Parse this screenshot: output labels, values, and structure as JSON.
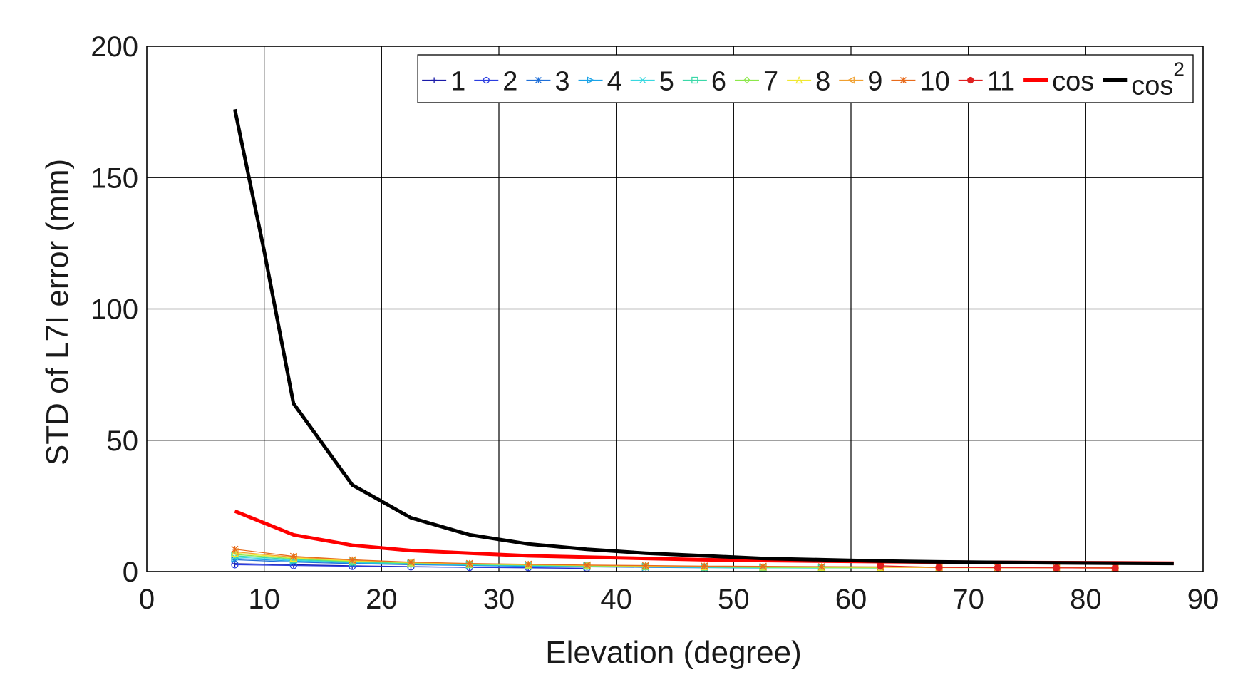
{
  "chart_data": {
    "type": "line",
    "xlabel": "Elevation (degree)",
    "ylabel": "STD of L7I error (mm)",
    "xlim": [
      0,
      90
    ],
    "ylim": [
      0,
      200
    ],
    "xticks": [
      0,
      10,
      20,
      30,
      40,
      50,
      60,
      70,
      80,
      90
    ],
    "yticks": [
      0,
      50,
      100,
      150,
      200
    ],
    "grid": true,
    "legend_position": "top-right",
    "legend_orientation": "horizontal",
    "series": [
      {
        "name": "1",
        "color": "#1a1aa8",
        "marker": "plus",
        "width": 1.2,
        "x": [
          7.5,
          12.5,
          17.5,
          22.5,
          27.5,
          32.5,
          37.5
        ],
        "y": [
          3.0,
          2.6,
          2.2,
          1.9,
          1.6,
          1.4,
          1.2
        ]
      },
      {
        "name": "2",
        "color": "#2a3de0",
        "marker": "circle",
        "width": 1.2,
        "x": [
          7.5,
          12.5,
          17.5,
          22.5,
          27.5,
          32.5,
          37.5
        ],
        "y": [
          2.6,
          2.3,
          2.0,
          1.8,
          1.6,
          1.5,
          1.3
        ]
      },
      {
        "name": "3",
        "color": "#1f6fd8",
        "marker": "star",
        "width": 1.2,
        "x": [
          7.5,
          12.5,
          17.5,
          22.5,
          27.5,
          32.5,
          37.5,
          42.5,
          47.5
        ],
        "y": [
          4.5,
          3.6,
          3.0,
          2.6,
          2.3,
          2.0,
          1.8,
          1.6,
          1.4
        ]
      },
      {
        "name": "4",
        "color": "#1aa3e8",
        "marker": "triangle-right",
        "width": 1.2,
        "x": [
          7.5,
          12.5,
          17.5,
          22.5,
          27.5,
          32.5,
          37.5,
          42.5,
          47.5,
          52.5
        ],
        "y": [
          5.0,
          4.0,
          3.3,
          2.8,
          2.4,
          2.1,
          1.9,
          1.7,
          1.5,
          1.3
        ]
      },
      {
        "name": "5",
        "color": "#38d8e0",
        "marker": "x",
        "width": 1.2,
        "x": [
          7.5,
          12.5,
          17.5,
          22.5,
          27.5,
          32.5,
          37.5,
          42.5,
          47.5,
          52.5,
          57.5
        ],
        "y": [
          5.5,
          4.3,
          3.5,
          3.0,
          2.6,
          2.3,
          2.0,
          1.8,
          1.6,
          1.4,
          1.3
        ]
      },
      {
        "name": "6",
        "color": "#3ad8a8",
        "marker": "square",
        "width": 1.2,
        "x": [
          7.5,
          12.5,
          17.5,
          22.5,
          27.5,
          32.5,
          37.5,
          42.5,
          47.5,
          52.5,
          57.5,
          62.5
        ],
        "y": [
          6.0,
          4.6,
          3.7,
          3.1,
          2.7,
          2.4,
          2.1,
          1.9,
          1.7,
          1.5,
          1.4,
          1.3
        ]
      },
      {
        "name": "7",
        "color": "#8ce84a",
        "marker": "diamond",
        "width": 1.2,
        "x": [
          7.5,
          12.5,
          17.5,
          22.5,
          27.5,
          32.5,
          37.5,
          42.5,
          47.5,
          52.5,
          57.5,
          62.5
        ],
        "y": [
          6.5,
          4.9,
          3.9,
          3.3,
          2.8,
          2.5,
          2.2,
          2.0,
          1.8,
          1.6,
          1.5,
          1.4
        ]
      },
      {
        "name": "8",
        "color": "#f0e830",
        "marker": "triangle-up",
        "width": 1.2,
        "x": [
          7.5,
          12.5,
          17.5,
          22.5,
          27.5,
          32.5,
          37.5,
          42.5,
          47.5,
          52.5,
          57.5,
          62.5,
          67.5,
          72.5,
          77.5,
          82.5
        ],
        "y": [
          7.0,
          5.2,
          4.1,
          3.4,
          2.9,
          2.6,
          2.3,
          2.1,
          1.9,
          1.8,
          1.7,
          1.6,
          1.5,
          1.4,
          1.4,
          1.3
        ]
      },
      {
        "name": "9",
        "color": "#f0a030",
        "marker": "triangle-left",
        "width": 1.2,
        "x": [
          7.5,
          12.5,
          17.5,
          22.5,
          27.5,
          32.5,
          37.5,
          42.5,
          47.5,
          52.5,
          57.5,
          62.5,
          67.5,
          72.5,
          77.5,
          82.5
        ],
        "y": [
          7.5,
          5.5,
          4.3,
          3.5,
          3.0,
          2.7,
          2.4,
          2.2,
          2.0,
          1.9,
          1.8,
          1.7,
          1.6,
          1.5,
          1.5,
          1.4
        ]
      },
      {
        "name": "10",
        "color": "#e86a1a",
        "marker": "star",
        "width": 1.2,
        "x": [
          7.5,
          12.5,
          17.5,
          22.5,
          27.5,
          32.5,
          37.5,
          42.5,
          47.5,
          52.5,
          57.5,
          62.5,
          67.5,
          72.5,
          77.5,
          82.5
        ],
        "y": [
          8.5,
          5.8,
          4.5,
          3.6,
          3.1,
          2.8,
          2.5,
          2.3,
          2.1,
          2.0,
          1.9,
          1.8,
          1.7,
          1.6,
          1.5,
          1.5
        ]
      },
      {
        "name": "11",
        "color": "#e02020",
        "marker": "hexagram",
        "width": 1.2,
        "x": [
          62.5,
          67.5,
          72.5,
          77.5,
          82.5
        ],
        "y": [
          2.2,
          1.6,
          1.5,
          1.4,
          1.3
        ]
      },
      {
        "name": "cos",
        "color": "#ff0000",
        "marker": "none",
        "width": 5,
        "x": [
          7.5,
          12.5,
          17.5,
          22.5,
          27.5,
          32.5,
          37.5,
          42.5,
          47.5,
          52.5,
          57.5,
          62.5,
          67.5,
          72.5,
          77.5,
          82.5,
          87.5
        ],
        "y": [
          23.0,
          14.0,
          10.0,
          8.0,
          7.0,
          6.0,
          5.5,
          5.0,
          4.5,
          4.2,
          4.0,
          3.8,
          3.6,
          3.5,
          3.4,
          3.3,
          3.2
        ]
      },
      {
        "name": "cos²",
        "color": "#000000",
        "marker": "none",
        "width": 5,
        "x": [
          7.5,
          10,
          12.5,
          17.5,
          22.5,
          27.5,
          32.5,
          37.5,
          42.5,
          47.5,
          52.5,
          57.5,
          62.5,
          67.5,
          72.5,
          77.5,
          82.5,
          87.5
        ],
        "y": [
          176,
          122,
          64,
          33,
          20.5,
          14,
          10.5,
          8.5,
          7.0,
          6.0,
          5.0,
          4.5,
          4.0,
          3.7,
          3.5,
          3.3,
          3.2,
          3.1
        ]
      }
    ]
  }
}
